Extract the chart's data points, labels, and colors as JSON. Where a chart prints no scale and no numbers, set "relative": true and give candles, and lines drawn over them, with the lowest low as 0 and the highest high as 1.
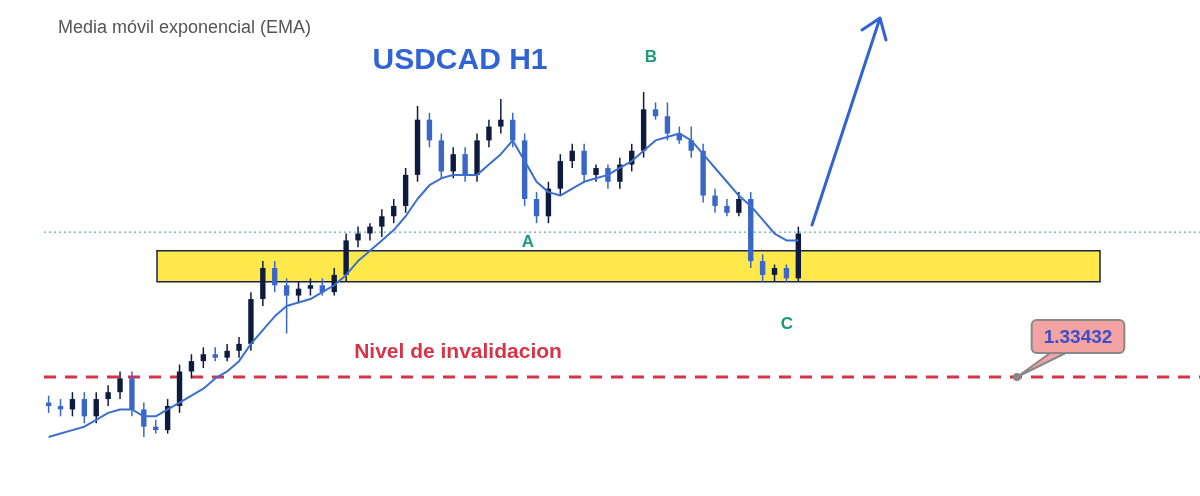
{
  "chart_data": {
    "type": "candlestick",
    "title": "USDCAD H1",
    "subtitle": "Media móvil exponencial (EMA)",
    "relative": true,
    "categories": [
      null,
      null,
      null,
      null,
      null,
      null,
      null,
      null,
      null,
      null,
      null,
      null,
      null,
      null,
      null,
      null,
      null,
      null,
      null,
      null,
      null,
      null,
      null,
      null,
      null,
      null,
      null,
      null,
      null,
      null,
      null,
      null,
      null,
      null,
      null,
      null,
      null,
      null,
      null,
      null,
      null,
      null,
      null,
      null,
      null,
      null,
      null,
      null,
      null,
      null,
      null,
      null,
      null,
      null,
      null,
      null,
      null,
      null,
      null,
      null,
      null,
      null,
      null,
      null
    ],
    "ohlc": [
      [
        0.1,
        0.12,
        0.07,
        0.09
      ],
      [
        0.09,
        0.11,
        0.06,
        0.08
      ],
      [
        0.08,
        0.13,
        0.06,
        0.11
      ],
      [
        0.11,
        0.13,
        0.04,
        0.06
      ],
      [
        0.06,
        0.13,
        0.04,
        0.11
      ],
      [
        0.11,
        0.15,
        0.09,
        0.13
      ],
      [
        0.13,
        0.19,
        0.11,
        0.17
      ],
      [
        0.17,
        0.19,
        0.06,
        0.08
      ],
      [
        0.08,
        0.1,
        0.0,
        0.03
      ],
      [
        0.03,
        0.05,
        0.01,
        0.02
      ],
      [
        0.02,
        0.11,
        0.01,
        0.09
      ],
      [
        0.09,
        0.21,
        0.07,
        0.19
      ],
      [
        0.19,
        0.24,
        0.17,
        0.22
      ],
      [
        0.22,
        0.26,
        0.2,
        0.24
      ],
      [
        0.24,
        0.26,
        0.22,
        0.23
      ],
      [
        0.23,
        0.27,
        0.22,
        0.25
      ],
      [
        0.25,
        0.29,
        0.23,
        0.27
      ],
      [
        0.27,
        0.42,
        0.25,
        0.4
      ],
      [
        0.4,
        0.51,
        0.38,
        0.49
      ],
      [
        0.49,
        0.51,
        0.42,
        0.44
      ],
      [
        0.44,
        0.46,
        0.3,
        0.41
      ],
      [
        0.41,
        0.45,
        0.39,
        0.43
      ],
      [
        0.43,
        0.46,
        0.41,
        0.44
      ],
      [
        0.44,
        0.46,
        0.41,
        0.42
      ],
      [
        0.42,
        0.49,
        0.41,
        0.47
      ],
      [
        0.47,
        0.59,
        0.45,
        0.57
      ],
      [
        0.57,
        0.61,
        0.55,
        0.59
      ],
      [
        0.59,
        0.62,
        0.57,
        0.61
      ],
      [
        0.61,
        0.66,
        0.58,
        0.64
      ],
      [
        0.64,
        0.69,
        0.62,
        0.67
      ],
      [
        0.67,
        0.78,
        0.65,
        0.76
      ],
      [
        0.76,
        0.96,
        0.74,
        0.92
      ],
      [
        0.92,
        0.94,
        0.84,
        0.86
      ],
      [
        0.86,
        0.88,
        0.75,
        0.77
      ],
      [
        0.77,
        0.84,
        0.75,
        0.82
      ],
      [
        0.82,
        0.84,
        0.74,
        0.76
      ],
      [
        0.76,
        0.88,
        0.74,
        0.86
      ],
      [
        0.86,
        0.92,
        0.84,
        0.9
      ],
      [
        0.9,
        0.98,
        0.88,
        0.92
      ],
      [
        0.92,
        0.94,
        0.84,
        0.86
      ],
      [
        0.86,
        0.88,
        0.67,
        0.69
      ],
      [
        0.69,
        0.71,
        0.62,
        0.64
      ],
      [
        0.64,
        0.74,
        0.62,
        0.72
      ],
      [
        0.72,
        0.82,
        0.7,
        0.8
      ],
      [
        0.8,
        0.85,
        0.78,
        0.83
      ],
      [
        0.83,
        0.85,
        0.74,
        0.76
      ],
      [
        0.76,
        0.79,
        0.74,
        0.78
      ],
      [
        0.78,
        0.79,
        0.72,
        0.74
      ],
      [
        0.74,
        0.81,
        0.72,
        0.79
      ],
      [
        0.79,
        0.85,
        0.77,
        0.83
      ],
      [
        0.83,
        1.0,
        0.81,
        0.95
      ],
      [
        0.95,
        0.97,
        0.92,
        0.93
      ],
      [
        0.93,
        0.97,
        0.86,
        0.88
      ],
      [
        0.88,
        0.9,
        0.85,
        0.86
      ],
      [
        0.86,
        0.9,
        0.81,
        0.83
      ],
      [
        0.83,
        0.85,
        0.68,
        0.7
      ],
      [
        0.7,
        0.72,
        0.65,
        0.67
      ],
      [
        0.67,
        0.69,
        0.64,
        0.65
      ],
      [
        0.65,
        0.71,
        0.64,
        0.69
      ],
      [
        0.69,
        0.71,
        0.49,
        0.51
      ],
      [
        0.51,
        0.53,
        0.45,
        0.47
      ],
      [
        0.47,
        0.5,
        0.45,
        0.49
      ],
      [
        0.49,
        0.5,
        0.45,
        0.46
      ],
      [
        0.46,
        0.61,
        0.45,
        0.59
      ]
    ],
    "series": [
      {
        "type": "line",
        "color": "#3b6fd0",
        "values": [
          0.0,
          0.01,
          0.02,
          0.03,
          0.05,
          0.07,
          0.08,
          0.08,
          0.06,
          0.06,
          0.08,
          0.1,
          0.12,
          0.14,
          0.17,
          0.19,
          0.22,
          0.27,
          0.31,
          0.35,
          0.38,
          0.39,
          0.4,
          0.42,
          0.44,
          0.47,
          0.51,
          0.54,
          0.57,
          0.6,
          0.64,
          0.69,
          0.73,
          0.75,
          0.76,
          0.76,
          0.76,
          0.79,
          0.82,
          0.86,
          0.8,
          0.74,
          0.71,
          0.7,
          0.72,
          0.74,
          0.75,
          0.76,
          0.78,
          0.8,
          0.83,
          0.86,
          0.87,
          0.88,
          0.86,
          0.82,
          0.78,
          0.74,
          0.7,
          0.67,
          0.63,
          0.59,
          0.57,
          0.57
        ]
      }
    ],
    "bands": [
      {
        "axis": "y",
        "from": 0.45,
        "to": 0.54,
        "color": "#ffe94a"
      }
    ],
    "ref_lines": [
      {
        "axis": "y",
        "value": 0.174,
        "label": "Nivel de invalidacion",
        "color": "#d63447",
        "line_style": "dashed"
      },
      {
        "axis": "y",
        "value": 0.594,
        "color": "#3a9c8f",
        "line_style": "dotted"
      }
    ],
    "annotations": [
      "A",
      "B",
      "C",
      "1.33432"
    ]
  }
}
